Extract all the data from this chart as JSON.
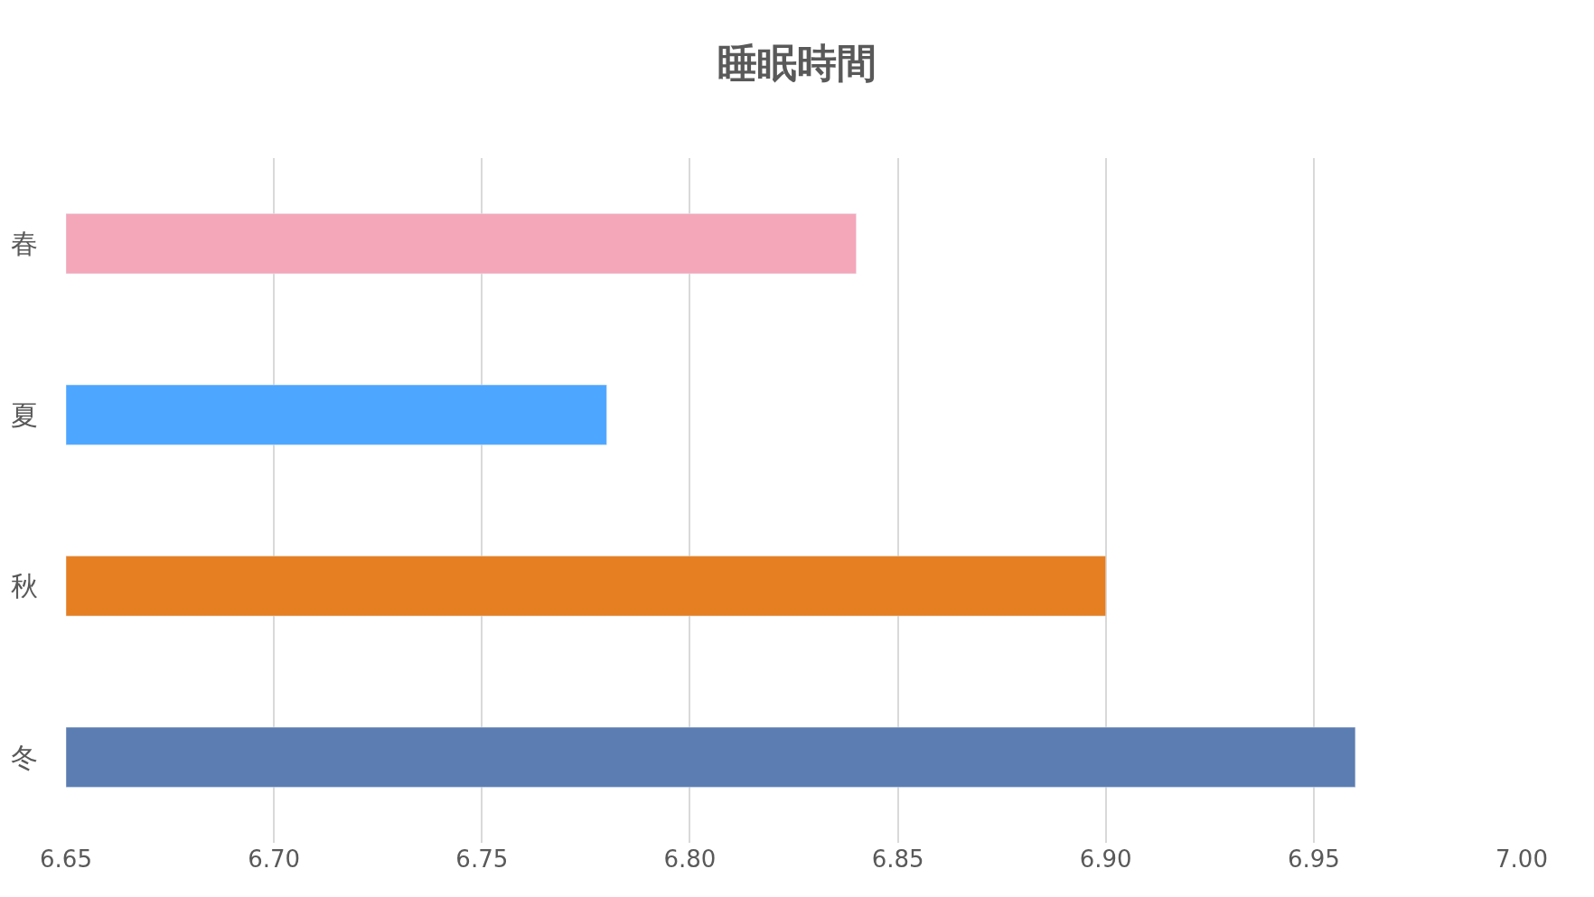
{
  "chart_data": {
    "type": "bar",
    "orientation": "horizontal",
    "title": "睡眠時間",
    "categories": [
      "春",
      "夏",
      "秋",
      "冬"
    ],
    "values": [
      6.84,
      6.78,
      6.9,
      6.96
    ],
    "colors": [
      "#f4a7b9",
      "#4da6ff",
      "#e67e22",
      "#5b7db1"
    ],
    "xlim": [
      6.65,
      7.0
    ],
    "xticks": [
      {
        "value": 6.65,
        "label": "6.65"
      },
      {
        "value": 6.7,
        "label": "6.70"
      },
      {
        "value": 6.75,
        "label": "6.75"
      },
      {
        "value": 6.8,
        "label": "6.80"
      },
      {
        "value": 6.85,
        "label": "6.85"
      },
      {
        "value": 6.9,
        "label": "6.90"
      },
      {
        "value": 6.95,
        "label": "6.95"
      },
      {
        "value": 7.0,
        "label": "7.00"
      }
    ],
    "grid": "x"
  }
}
